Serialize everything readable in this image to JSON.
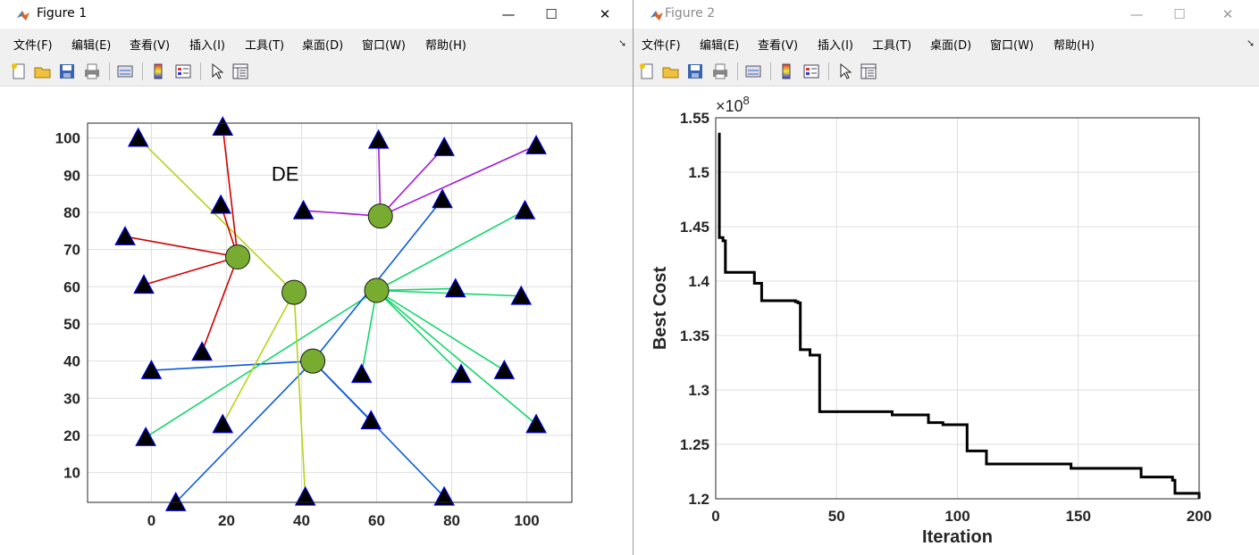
{
  "windows": [
    {
      "title": "Figure 1"
    },
    {
      "title": "Figure 2"
    }
  ],
  "menu": [
    "文件(F)",
    "编辑(E)",
    "查看(V)",
    "插入(I)",
    "工具(T)",
    "桌面(D)",
    "窗口(W)",
    "帮助(H)"
  ],
  "toolbar_icons": [
    "new-figure-icon",
    "open-file-icon",
    "save-icon",
    "print-icon",
    "link-plot-icon",
    "colorbar-icon",
    "legend-icon",
    "edit-plot-icon",
    "property-inspector-icon"
  ],
  "colors": {
    "node_fill": "#77ac30",
    "triangle_fill": "#000000",
    "triangle_edge": "#0000ff",
    "cost_line": "#000000"
  },
  "chart_data": [
    {
      "type": "scatter",
      "title": "DE",
      "xlabel": "",
      "ylabel": "",
      "xlim": [
        -17,
        112
      ],
      "ylim": [
        2,
        104
      ],
      "xticks": [
        0,
        20,
        40,
        60,
        80,
        100
      ],
      "yticks": [
        10,
        20,
        30,
        40,
        50,
        60,
        70,
        80,
        90,
        100
      ],
      "grid": true,
      "centers": [
        {
          "x": 23,
          "y": 68,
          "color": "#d00000"
        },
        {
          "x": 38,
          "y": 58.5,
          "color": "#b5d418"
        },
        {
          "x": 60,
          "y": 59,
          "color": "#13d66b"
        },
        {
          "x": 43,
          "y": 40,
          "color": "#0a5ad8"
        },
        {
          "x": 61,
          "y": 79,
          "color": "#a61bd6"
        }
      ],
      "points": [
        {
          "x": -3.5,
          "y": 100,
          "c": 1
        },
        {
          "x": 19,
          "y": 103,
          "c": 0
        },
        {
          "x": 18.5,
          "y": 82,
          "c": 0
        },
        {
          "x": -7,
          "y": 73.5,
          "c": 0
        },
        {
          "x": -2,
          "y": 60.5,
          "c": 0
        },
        {
          "x": 13.5,
          "y": 42.5,
          "c": 0
        },
        {
          "x": 0,
          "y": 37.5,
          "c": 3
        },
        {
          "x": -1.5,
          "y": 19.5,
          "c": 2
        },
        {
          "x": 6.5,
          "y": 2,
          "c": 3
        },
        {
          "x": 19,
          "y": 23,
          "c": 1
        },
        {
          "x": 41,
          "y": 3.5,
          "c": 1
        },
        {
          "x": 40.5,
          "y": 80.5,
          "c": 4
        },
        {
          "x": 60.5,
          "y": 99.5,
          "c": 4
        },
        {
          "x": 78,
          "y": 97.5,
          "c": 4
        },
        {
          "x": 102.5,
          "y": 98,
          "c": 4
        },
        {
          "x": 77.5,
          "y": 83.5,
          "c": 3
        },
        {
          "x": 99.5,
          "y": 80.5,
          "c": 2
        },
        {
          "x": 81,
          "y": 59.5,
          "c": 2
        },
        {
          "x": 98.5,
          "y": 57.5,
          "c": 2
        },
        {
          "x": 56,
          "y": 36.5,
          "c": 2
        },
        {
          "x": 82.5,
          "y": 36.5,
          "c": 2
        },
        {
          "x": 94,
          "y": 37.5,
          "c": 2
        },
        {
          "x": 102.5,
          "y": 23,
          "c": 2
        },
        {
          "x": 58.5,
          "y": 24,
          "c": 3
        },
        {
          "x": 78,
          "y": 3.5,
          "c": 3
        }
      ]
    },
    {
      "type": "line",
      "xlabel": "Iteration",
      "ylabel": "Best Cost",
      "exponent": "×10",
      "exponent_power": "8",
      "xlim": [
        0,
        200
      ],
      "ylim": [
        1.2,
        1.55
      ],
      "xticks": [
        0,
        50,
        100,
        150,
        200
      ],
      "yticks": [
        1.2,
        1.25,
        1.3,
        1.35,
        1.4,
        1.45,
        1.5,
        1.55
      ],
      "ytick_labels": [
        "1.2",
        "1.25",
        "1.3",
        "1.35",
        "1.4",
        "1.45",
        "1.5",
        "1.55"
      ],
      "grid": true,
      "step": true,
      "series": [
        {
          "x": [
            1,
            1.5,
            2,
            3,
            4,
            15,
            16,
            18,
            19,
            29,
            33,
            34,
            35,
            37,
            39,
            42,
            43,
            72,
            73,
            87,
            88,
            93,
            94,
            103,
            104,
            111,
            112,
            146,
            147,
            175,
            176,
            187,
            189,
            190,
            198,
            200
          ],
          "y": [
            1.535,
            1.44,
            1.44,
            1.437,
            1.408,
            1.408,
            1.398,
            1.398,
            1.382,
            1.382,
            1.381,
            1.38,
            1.337,
            1.337,
            1.332,
            1.332,
            1.28,
            1.28,
            1.277,
            1.277,
            1.27,
            1.27,
            1.268,
            1.268,
            1.244,
            1.244,
            1.232,
            1.232,
            1.228,
            1.228,
            1.22,
            1.22,
            1.217,
            1.205,
            1.205,
            1.2
          ]
        }
      ]
    }
  ]
}
